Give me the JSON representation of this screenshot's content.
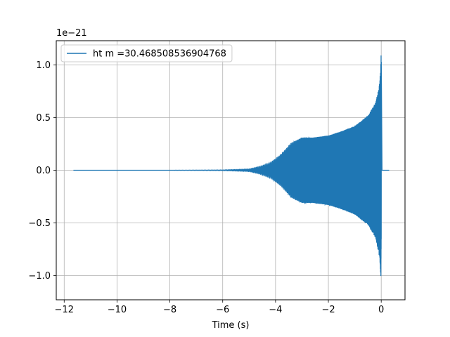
{
  "chart_data": {
    "type": "line",
    "title": "",
    "xlabel": "Time (s)",
    "ylabel": "",
    "y_offset_text": "1e−21",
    "y_scale_factor": 1e-21,
    "xlim": [
      -12.3,
      0.9
    ],
    "ylim": [
      -1.23,
      1.23
    ],
    "grid": true,
    "legend_location": "upper left",
    "x_ticks": [
      -12,
      -10,
      -8,
      -6,
      -4,
      -2,
      0
    ],
    "x_tick_labels": [
      "−12",
      "−10",
      "−8",
      "−6",
      "−4",
      "−2",
      "0"
    ],
    "y_ticks": [
      -1.0,
      -0.5,
      0.0,
      0.5,
      1.0
    ],
    "y_tick_labels": [
      "−1.0",
      "−0.5",
      "0.0",
      "0.5",
      "1.0"
    ],
    "series": [
      {
        "name": "ht m =30.468508536904768",
        "color": "#1f77b4",
        "x_start": -11.65,
        "x_merger": 0.0,
        "x_end": 0.3,
        "envelope_x": [
          -11.65,
          -8.0,
          -6.0,
          -5.0,
          -4.6,
          -4.2,
          -3.8,
          -3.4,
          -3.0,
          -2.6,
          -2.0,
          -1.5,
          -1.0,
          -0.5,
          -0.2,
          -0.05,
          0.0,
          0.03,
          0.3
        ],
        "envelope_y": [
          0.0,
          0.0,
          0.003,
          0.012,
          0.035,
          0.07,
          0.15,
          0.26,
          0.31,
          0.31,
          0.33,
          0.37,
          0.42,
          0.52,
          0.65,
          0.85,
          1.13,
          0.0,
          0.0
        ]
      }
    ]
  }
}
